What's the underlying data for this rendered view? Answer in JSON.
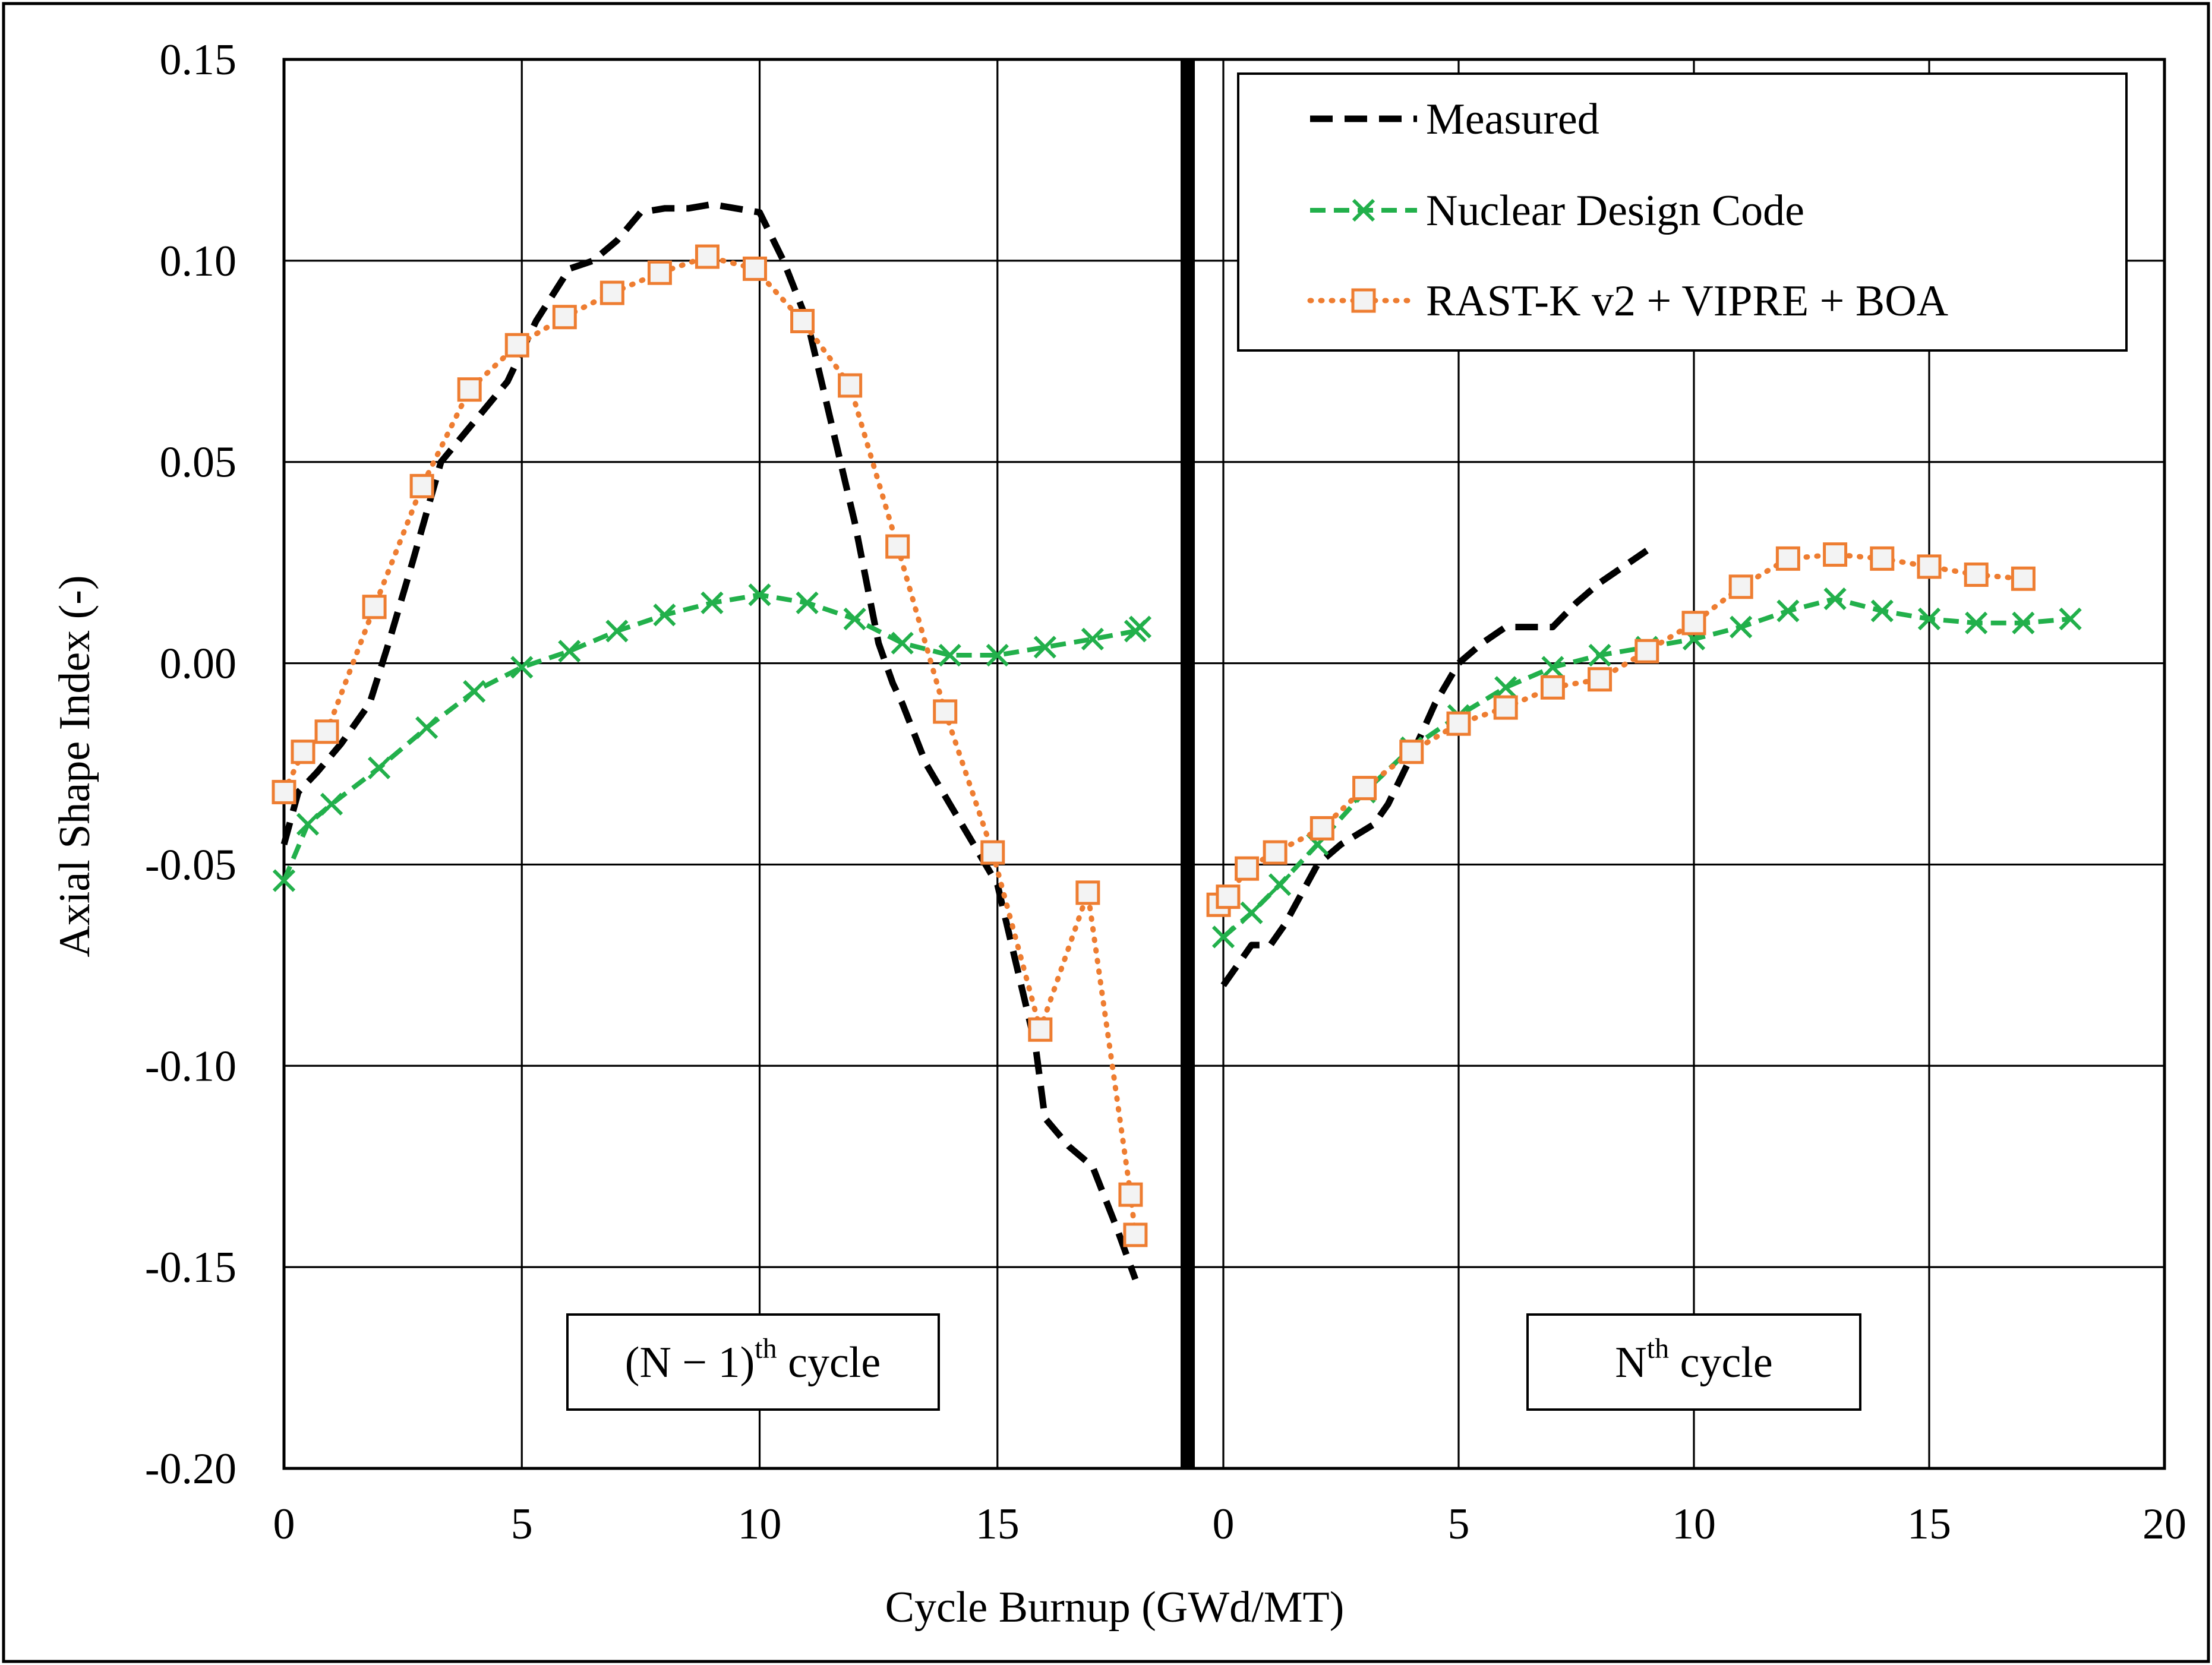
{
  "chart_data": {
    "type": "line",
    "ylabel": "Axial Shape Index (-)",
    "xlabel": "Cycle Burnup (GWd/MT)",
    "ylim": [
      -0.2,
      0.15
    ],
    "yticks": [
      "0.15",
      "0.10",
      "0.05",
      "0.00",
      "-0.05",
      "-0.10",
      "-0.15",
      "-0.20"
    ],
    "legend": "top-right",
    "grid": true,
    "panels": [
      {
        "label": "(N − 1)",
        "label_sup": "th",
        "label_suffix": " cycle",
        "xlim": [
          0,
          19
        ],
        "xticks": [
          "0",
          "5",
          "10",
          "15"
        ],
        "series": [
          {
            "name": "Measured",
            "color": "#000000",
            "style": "dashed",
            "marker": "none",
            "x": [
              0,
              0.3,
              0.7,
              1.2,
              1.8,
              2.2,
              2.7,
              3.3,
              4.0,
              4.7,
              5.3,
              6.0,
              6.5,
              7.0,
              7.5,
              8.0,
              8.5,
              9.0,
              9.5,
              10.0,
              10.5,
              11.0,
              11.5,
              12.0,
              12.5,
              12.8,
              13.0,
              13.5,
              14.0,
              14.5,
              15.0,
              15.4,
              15.8,
              16.0,
              16.5,
              17.0,
              17.5,
              17.9
            ],
            "y": [
              -0.045,
              -0.032,
              -0.027,
              -0.02,
              -0.01,
              0.005,
              0.025,
              0.05,
              0.06,
              0.07,
              0.085,
              0.098,
              0.1,
              0.105,
              0.112,
              0.113,
              0.113,
              0.114,
              0.113,
              0.112,
              0.1,
              0.085,
              0.06,
              0.035,
              0.005,
              -0.005,
              -0.01,
              -0.025,
              -0.035,
              -0.045,
              -0.055,
              -0.075,
              -0.095,
              -0.113,
              -0.12,
              -0.125,
              -0.14,
              -0.153
            ]
          },
          {
            "name": "Nuclear Design Code",
            "color": "#22b04b",
            "style": "dashed",
            "marker": "x",
            "x": [
              0,
              0.5,
              1.0,
              2.0,
              3.0,
              4.0,
              5.0,
              6.0,
              7.0,
              8.0,
              9.0,
              10.0,
              11.0,
              12.0,
              13.0,
              14.0,
              15.0,
              16.0,
              17.0,
              17.9,
              18.0
            ],
            "y": [
              -0.054,
              -0.04,
              -0.035,
              -0.026,
              -0.016,
              -0.007,
              -0.001,
              0.003,
              0.008,
              0.012,
              0.015,
              0.017,
              0.015,
              0.011,
              0.005,
              0.002,
              0.002,
              0.004,
              0.006,
              0.008,
              0.009
            ]
          },
          {
            "name": "RAST-K v2 + VIPRE + BOA",
            "color": "#ee7d31",
            "style": "dotted",
            "marker": "square",
            "x": [
              0,
              0.4,
              0.9,
              1.9,
              2.9,
              3.9,
              4.9,
              5.9,
              6.9,
              7.9,
              8.9,
              9.9,
              10.9,
              11.9,
              12.9,
              13.9,
              14.9,
              15.9,
              16.9,
              17.8,
              17.9
            ],
            "y": [
              -0.032,
              -0.022,
              -0.017,
              0.014,
              0.044,
              0.068,
              0.079,
              0.086,
              0.092,
              0.097,
              0.101,
              0.098,
              0.085,
              0.069,
              0.029,
              -0.012,
              -0.047,
              -0.091,
              -0.057,
              -0.132,
              -0.142
            ]
          }
        ]
      },
      {
        "label": "N",
        "label_sup": "th",
        "label_suffix": " cycle",
        "xlim": [
          0,
          20
        ],
        "xticks": [
          "0",
          "5",
          "10",
          "15",
          "20"
        ],
        "series": [
          {
            "name": "Measured",
            "color": "#000000",
            "style": "dashed",
            "marker": "none",
            "x": [
              0,
              0.3,
              0.6,
              1.0,
              1.3,
              2.0,
              2.5,
              3.2,
              3.5,
              4.0,
              4.5,
              5.0,
              5.5,
              6.0,
              6.5,
              7.0,
              7.5,
              8.0,
              8.5,
              9.0
            ],
            "y": [
              -0.08,
              -0.075,
              -0.07,
              -0.07,
              -0.065,
              -0.05,
              -0.045,
              -0.04,
              -0.035,
              -0.023,
              -0.01,
              0.0,
              0.005,
              0.009,
              0.009,
              0.009,
              0.015,
              0.02,
              0.024,
              0.028
            ]
          },
          {
            "name": "Nuclear Design Code",
            "color": "#22b04b",
            "style": "dashed",
            "marker": "x",
            "x": [
              0,
              0.6,
              1.2,
              2.0,
              3.0,
              4.0,
              5.0,
              6.0,
              7.0,
              8.0,
              9.0,
              10.0,
              11.0,
              12.0,
              13.0,
              14.0,
              15.0,
              16.0,
              17.0,
              18.0
            ],
            "y": [
              -0.068,
              -0.062,
              -0.055,
              -0.045,
              -0.032,
              -0.021,
              -0.013,
              -0.006,
              -0.001,
              0.002,
              0.004,
              0.006,
              0.009,
              0.013,
              0.016,
              0.013,
              0.011,
              0.01,
              0.01,
              0.011
            ]
          },
          {
            "name": "RAST-K v2 + VIPRE + BOA",
            "color": "#ee7d31",
            "style": "dotted",
            "marker": "square",
            "x": [
              -0.1,
              0.1,
              0.5,
              1.1,
              2.1,
              3.0,
              4.0,
              5.0,
              6.0,
              7.0,
              8.0,
              9.0,
              10.0,
              11.0,
              12.0,
              13.0,
              14.0,
              15.0,
              16.0,
              17.0
            ],
            "y": [
              -0.06,
              -0.058,
              -0.051,
              -0.047,
              -0.041,
              -0.031,
              -0.022,
              -0.015,
              -0.011,
              -0.006,
              -0.004,
              0.003,
              0.01,
              0.019,
              0.026,
              0.027,
              0.026,
              0.024,
              0.022,
              0.021
            ]
          }
        ]
      }
    ]
  }
}
